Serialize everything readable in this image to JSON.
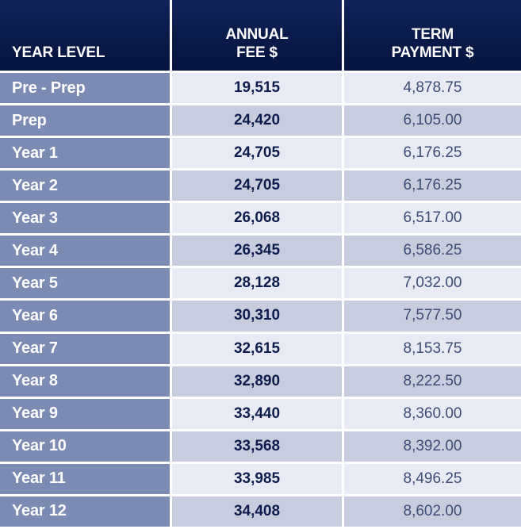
{
  "table": {
    "headers": {
      "year_level": "YEAR LEVEL",
      "annual_fee_line1": "ANNUAL",
      "annual_fee_line2": "FEE $",
      "term_payment_line1": "TERM",
      "term_payment_line2": "PAYMENT $"
    },
    "rows": [
      {
        "level": "Pre - Prep",
        "annual_fee": "19,515",
        "term_payment": "4,878.75"
      },
      {
        "level": "Prep",
        "annual_fee": "24,420",
        "term_payment": "6,105.00"
      },
      {
        "level": "Year 1",
        "annual_fee": "24,705",
        "term_payment": "6,176.25"
      },
      {
        "level": "Year 2",
        "annual_fee": "24,705",
        "term_payment": "6,176.25"
      },
      {
        "level": "Year 3",
        "annual_fee": "26,068",
        "term_payment": "6,517.00"
      },
      {
        "level": "Year 4",
        "annual_fee": "26,345",
        "term_payment": "6,586.25"
      },
      {
        "level": "Year 5",
        "annual_fee": "28,128",
        "term_payment": "7,032.00"
      },
      {
        "level": "Year 6",
        "annual_fee": "30,310",
        "term_payment": "7,577.50"
      },
      {
        "level": "Year 7",
        "annual_fee": "32,615",
        "term_payment": "8,153.75"
      },
      {
        "level": "Year 8",
        "annual_fee": "32,890",
        "term_payment": "8,222.50"
      },
      {
        "level": "Year 9",
        "annual_fee": "33,440",
        "term_payment": "8,360.00"
      },
      {
        "level": "Year 10",
        "annual_fee": "33,568",
        "term_payment": "8,392.00"
      },
      {
        "level": "Year 11",
        "annual_fee": "33,985",
        "term_payment": "8,496.25"
      },
      {
        "level": "Year 12",
        "annual_fee": "34,408",
        "term_payment": "8,602.00"
      }
    ]
  },
  "colors": {
    "header_bg": "#0a1a4a",
    "level_bg": "#7c8bb3",
    "row_light": "#e8ebf3",
    "row_dark": "#c7cddf",
    "fee_text": "#0e1c4d",
    "term_text": "#3e4c75"
  }
}
